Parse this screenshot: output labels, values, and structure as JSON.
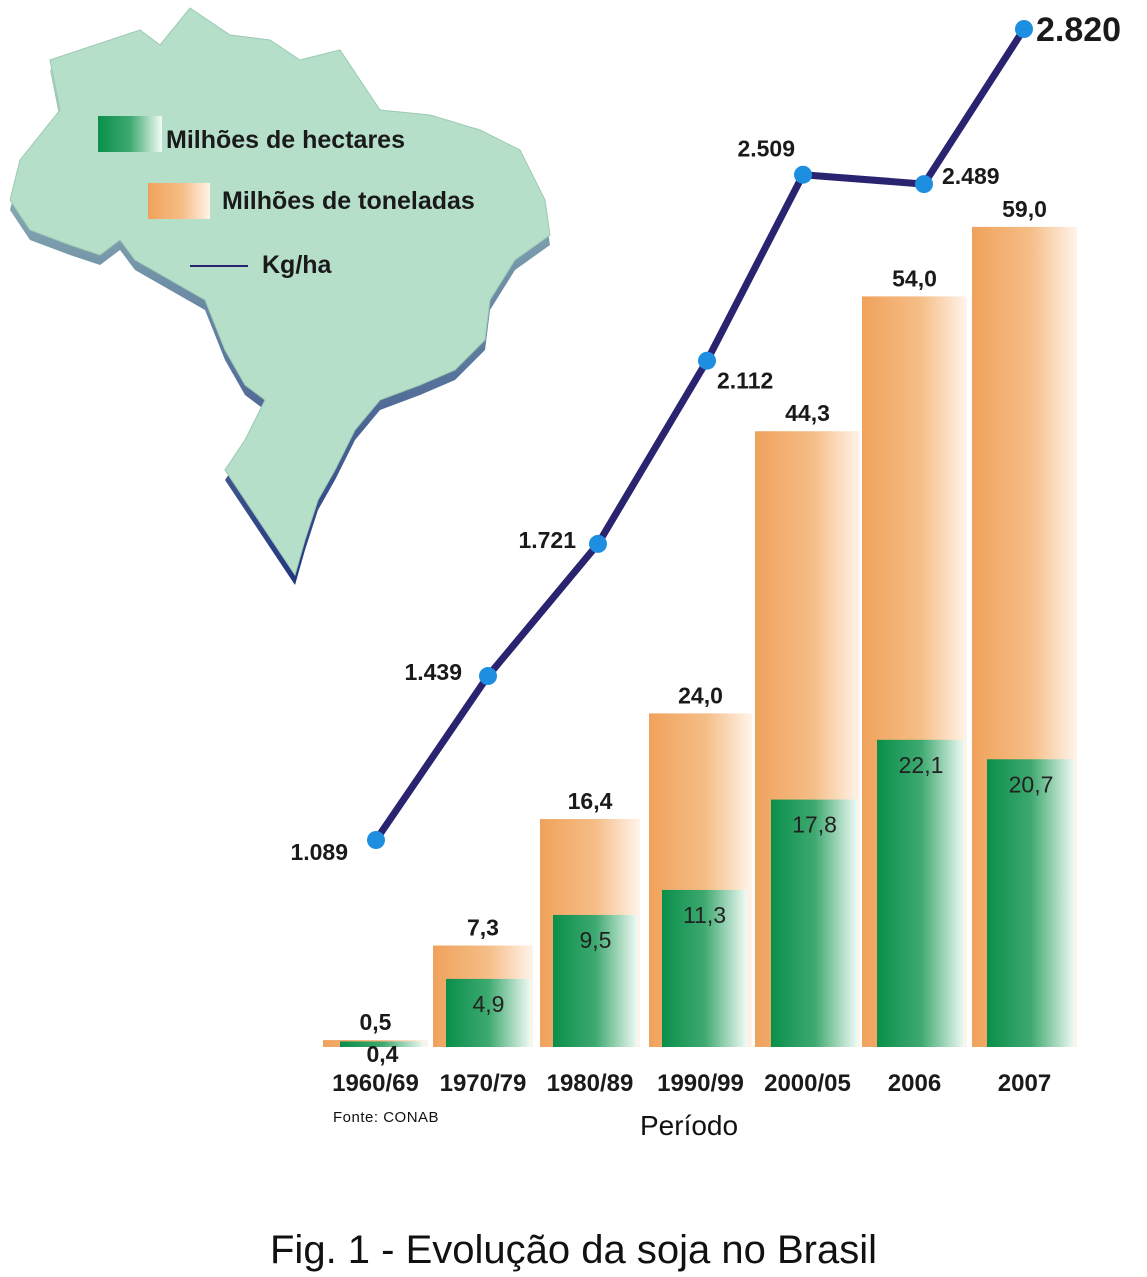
{
  "caption": "Fig. 1 - Evolução da soja no Brasil",
  "source": "Fonte: CONAB",
  "chart_data": {
    "type": "bar",
    "xlabel": "Período",
    "categories": [
      "1960/69",
      "1970/79",
      "1980/89",
      "1990/99",
      "2000/05",
      "2006",
      "2007"
    ],
    "series": [
      {
        "name": "Milhões de hectares",
        "kind": "bar",
        "values": [
          0.4,
          4.9,
          9.5,
          11.3,
          17.8,
          22.1,
          20.7
        ],
        "labels": [
          "0,4",
          "4,9",
          "9,5",
          "11,3",
          "17,8",
          "22,1",
          "20,7"
        ],
        "color": "#0a8f4a"
      },
      {
        "name": "Milhões de toneladas",
        "kind": "bar",
        "values": [
          0.5,
          7.3,
          16.4,
          24.0,
          44.3,
          54.0,
          59.0
        ],
        "labels": [
          "0,5",
          "7,3",
          "16,4",
          "24,0",
          "44,3",
          "54,0",
          "59,0"
        ],
        "color": "#f0a25c"
      },
      {
        "name": "Kg/ha",
        "kind": "line",
        "values": [
          1089,
          1439,
          1721,
          2112,
          2509,
          2489,
          2820
        ],
        "labels": [
          "1.089",
          "1.439",
          "1.721",
          "2.112",
          "2.509",
          "2.489",
          "2.820"
        ],
        "color": "#2a2470",
        "marker_color": "#1e8fe0"
      }
    ],
    "legend": "top-left",
    "grid": false
  },
  "map": {
    "icon": "brazil-map-icon",
    "fill": "#b5dfc9",
    "shade": "#2c3f8c"
  }
}
